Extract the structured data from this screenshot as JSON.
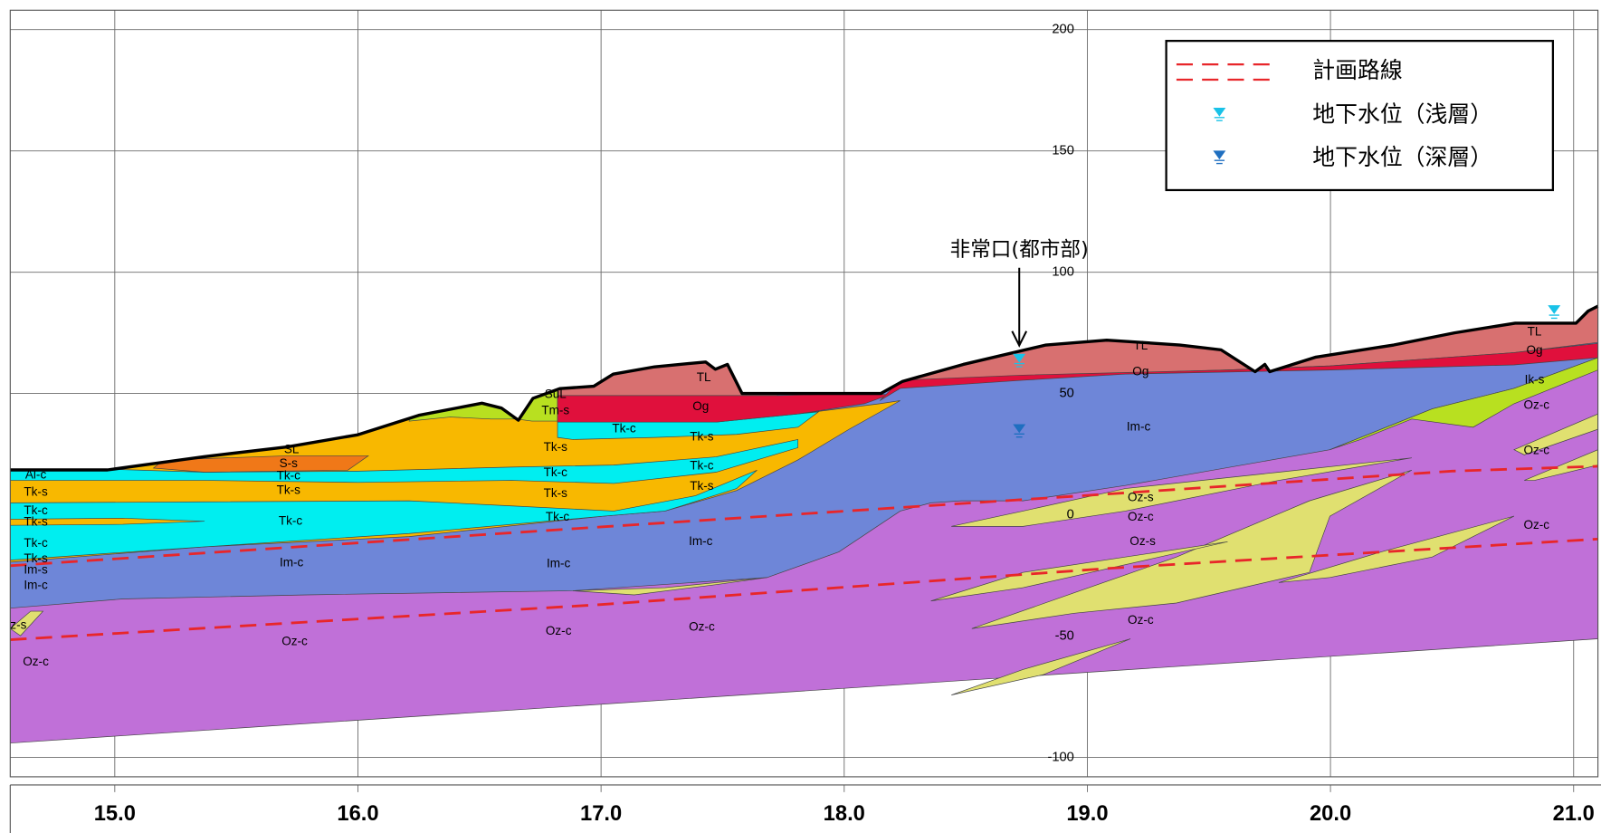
{
  "chart_data": {
    "type": "section",
    "xlim": [
      14.57,
      21.1
    ],
    "ylim": [
      -108,
      208
    ],
    "xticks": [
      {
        "value": 15,
        "label": "15.0"
      },
      {
        "value": 16,
        "label": "16.0"
      },
      {
        "value": 17,
        "label": "17.0"
      },
      {
        "value": 18,
        "label": "18.0"
      },
      {
        "value": 19,
        "label": "19.0"
      },
      {
        "value": 20,
        "label": "20.0"
      },
      {
        "value": 21,
        "label": "21.0"
      }
    ],
    "yticks": [
      -100,
      -50,
      0,
      50,
      100,
      150,
      200
    ],
    "grid": true,
    "ground_surface": {
      "color": "#000000",
      "x": [
        14.57,
        14.97,
        15.37,
        15.71,
        16.0,
        16.25,
        16.51,
        16.59,
        16.66,
        16.72,
        16.83,
        16.97,
        17.05,
        17.22,
        17.43,
        17.47,
        17.52,
        17.58,
        17.73,
        18.15,
        18.24,
        18.49,
        18.83,
        19.08,
        19.38,
        19.55,
        19.69,
        19.73,
        19.75,
        19.94,
        20.26,
        20.51,
        20.76,
        21.01,
        21.06,
        21.1
      ],
      "y": [
        18.5,
        18.5,
        24,
        28,
        33,
        41,
        46,
        44,
        39,
        48,
        52,
        53,
        58,
        61,
        63,
        60,
        62,
        50,
        50,
        50,
        55,
        62,
        70,
        72,
        70,
        68,
        59,
        62,
        59,
        65,
        70,
        75,
        79,
        79,
        84,
        86
      ]
    },
    "route_color": "#e8262a",
    "route_lines": [
      {
        "x": [
          14.57,
          17.0,
          19.0,
          20.5,
          21.1
        ],
        "y": [
          -21,
          -5,
          8,
          18,
          20
        ]
      },
      {
        "x": [
          14.57,
          17.0,
          19.1,
          21.1
        ],
        "y": [
          -51.5,
          -37,
          -22,
          -10
        ]
      }
    ],
    "water_levels": {
      "shallow": {
        "color": "#19c2e8",
        "x": [
          18.72,
          20.92
        ],
        "y": [
          64,
          84
        ]
      },
      "deep": {
        "color": "#1f6fc0",
        "x": [
          18.72
        ],
        "y": [
          35
        ]
      }
    },
    "legend": {
      "position": "upper right",
      "entries": [
        "計画路線",
        "地下水位（浅層）",
        "地下水位（深層）"
      ]
    },
    "annotation": {
      "text": "非常口(都市部)",
      "x": 18.72
    },
    "layer_labels": [
      "Al-c",
      "Tk-s",
      "Tk-c",
      "Tk-s",
      "Tk-c",
      "Tk-s",
      "Im-s",
      "Im-c",
      "z-s",
      "Oz-c",
      "SL",
      "S-s",
      "Tk-c",
      "Tk-s",
      "Tk-c",
      "Im-c",
      "Oz-c",
      "SuL",
      "Tm-s",
      "Tk-s",
      "Tk-c",
      "Tk-s",
      "Tk-c",
      "Im-c",
      "Oz-c",
      "Tk-c",
      "TL",
      "Og",
      "Tk-s",
      "Tk-c",
      "Tk-s",
      "Im-c",
      "Oz-c",
      "TL",
      "Og",
      "Im-c",
      "Oz-s",
      "Oz-c",
      "Oz-s",
      "Oz-c",
      "TL",
      "Og",
      "Ik-s",
      "Oz-c",
      "Oz-c",
      "Oz-c"
    ]
  }
}
